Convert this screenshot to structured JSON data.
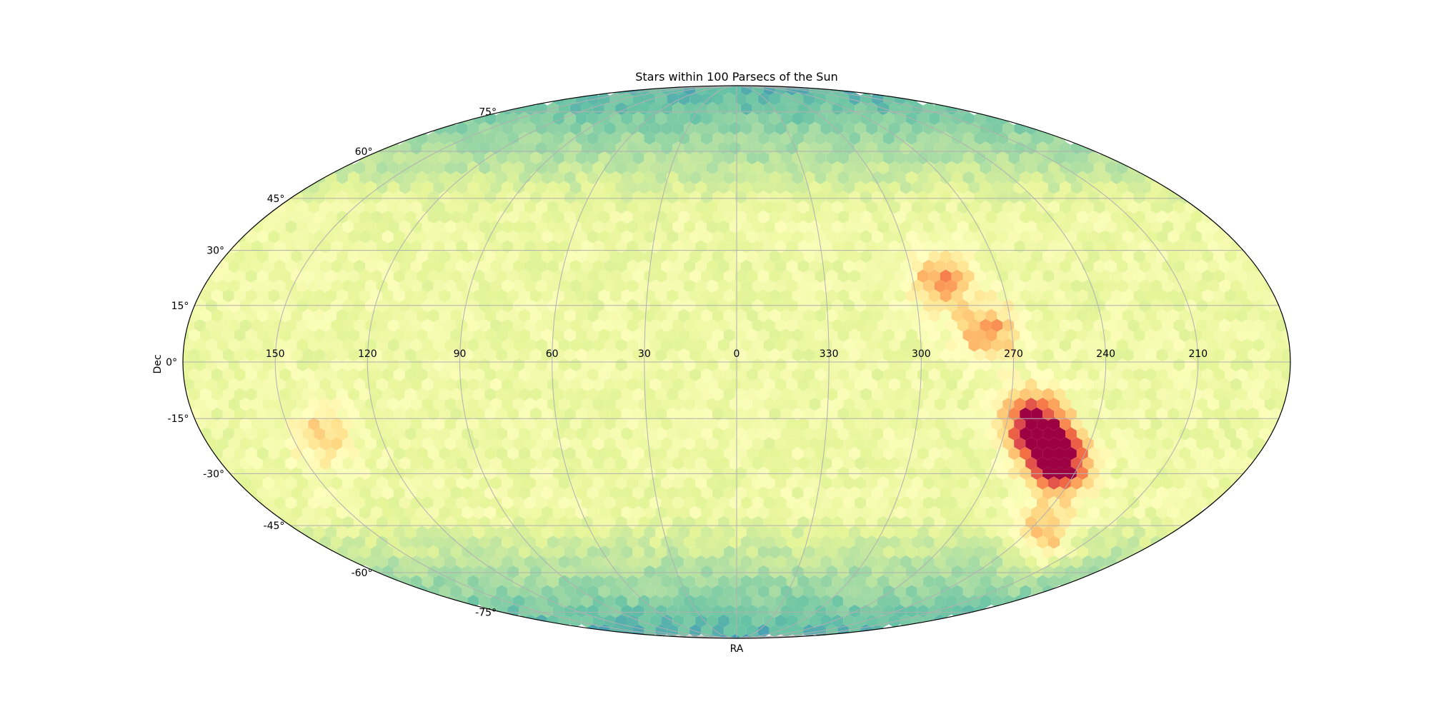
{
  "chart_data": {
    "type": "heatmap",
    "title": "Stars within 100 Parsecs of the Sun",
    "xlabel": "RA",
    "ylabel": "Dec",
    "projection": "mollweide",
    "ra_tick_labels": [
      "150",
      "120",
      "90",
      "60",
      "30",
      "0",
      "330",
      "300",
      "270",
      "240",
      "210"
    ],
    "dec_tick_labels": [
      "75°",
      "60°",
      "45°",
      "30°",
      "15°",
      "0°",
      "-15°",
      "-30°",
      "-45°",
      "-60°",
      "-75°"
    ],
    "dec_ticks": [
      75,
      60,
      45,
      30,
      15,
      0,
      -15,
      -30,
      -45,
      -60,
      -75
    ],
    "ra_ticks": [
      150,
      120,
      90,
      60,
      30,
      0,
      -30,
      -60,
      -90,
      -120,
      -150
    ],
    "grid": true,
    "colormap": "Spectral_r",
    "description_of_density": {
      "background_level": "moderate, uniform",
      "polar_regions": "lower density (cool colors) near |Dec| > 65",
      "hotspots": [
        {
          "ra_deg": 290,
          "dec_deg": 22,
          "intensity": "high"
        },
        {
          "ra_deg": 278,
          "dec_deg": 8,
          "intensity": "high"
        },
        {
          "ra_deg": 262,
          "dec_deg": -15,
          "intensity": "very high"
        },
        {
          "ra_deg": 255,
          "dec_deg": -22,
          "intensity": "very high"
        },
        {
          "ra_deg": 245,
          "dec_deg": -28,
          "intensity": "very high"
        },
        {
          "ra_deg": 232,
          "dec_deg": -48,
          "intensity": "high"
        },
        {
          "ra_deg": 140,
          "dec_deg": -20,
          "intensity": "medium"
        }
      ]
    }
  }
}
